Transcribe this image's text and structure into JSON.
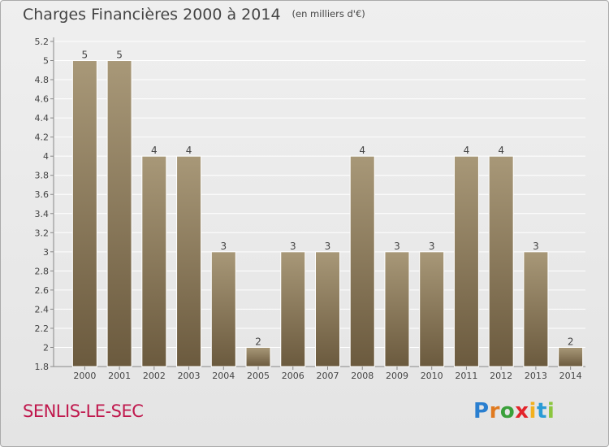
{
  "title": "Charges Financières 2000 à 2014",
  "subtitle": "(en milliers d'€)",
  "town": "SENLIS-LE-SEC",
  "logo": {
    "text": "Proxiti",
    "colors": [
      "#2a7fd0",
      "#e07a1f",
      "#3aa03a",
      "#e3242b",
      "#f2b01e",
      "#2a9bd6",
      "#8cc63f"
    ]
  },
  "colors": {
    "bar_top": "#a89878",
    "bar_bottom": "#6b5a3e",
    "text": "#444444",
    "grid": "#ffffff",
    "town": "#c0184d"
  },
  "chart_data": {
    "type": "bar",
    "categories": [
      "2000",
      "2001",
      "2002",
      "2003",
      "2004",
      "2005",
      "2006",
      "2007",
      "2008",
      "2009",
      "2010",
      "2011",
      "2012",
      "2013",
      "2014"
    ],
    "values": [
      5,
      5,
      4,
      4,
      3,
      2,
      3,
      3,
      4,
      3,
      3,
      4,
      4,
      3,
      2
    ],
    "bar_heights": [
      5,
      5,
      4,
      4,
      3,
      2,
      3,
      3,
      4,
      3,
      3,
      4,
      4,
      3,
      2
    ],
    "value_labels": [
      "5",
      "5",
      "4",
      "4",
      "3",
      "2",
      "3",
      "3",
      "4",
      "3",
      "3",
      "4",
      "4",
      "3",
      "2"
    ],
    "ylim": [
      1.8,
      5.2
    ],
    "yticks": [
      "1.8",
      "2",
      "2.2",
      "2.4",
      "2.6",
      "2.8",
      "3",
      "3.2",
      "3.4",
      "3.6",
      "3.8",
      "4",
      "4.2",
      "4.4",
      "4.6",
      "4.8",
      "5",
      "5.2"
    ],
    "grid": true,
    "legend": "none",
    "xlabel": "",
    "ylabel": ""
  }
}
